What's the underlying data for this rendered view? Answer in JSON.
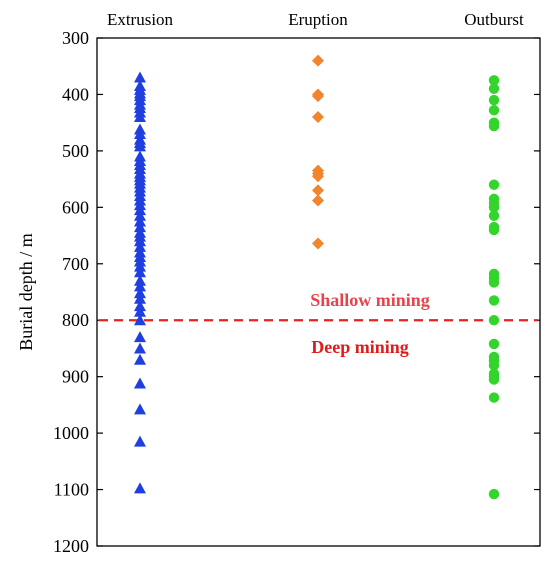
{
  "chart_data": {
    "type": "scatter",
    "categories": [
      "Extrusion",
      "Eruption",
      "Outburst"
    ],
    "ylabel": "Burial depth / m",
    "ylim": [
      300,
      1200
    ],
    "y_inverted": true,
    "yticks": [
      300,
      400,
      500,
      600,
      700,
      800,
      900,
      1000,
      1100,
      1200
    ],
    "series": [
      {
        "category": "Extrusion",
        "marker": "triangle",
        "color": "#1f3fe0",
        "values": [
          370,
          385,
          392,
          398,
          403,
          410,
          418,
          424,
          432,
          440,
          462,
          470,
          480,
          486,
          492,
          510,
          518,
          525,
          532,
          540,
          546,
          552,
          558,
          565,
          572,
          580,
          588,
          596,
          605,
          615,
          625,
          635,
          645,
          652,
          660,
          670,
          680,
          688,
          696,
          705,
          715,
          730,
          740,
          752,
          762,
          775,
          785,
          800,
          830,
          850,
          870,
          912,
          958,
          1015,
          1098
        ]
      },
      {
        "category": "Eruption",
        "marker": "diamond",
        "color": "#f0852d",
        "values": [
          340,
          400,
          403,
          440,
          535,
          540,
          545,
          570,
          588,
          664
        ]
      },
      {
        "category": "Outburst",
        "marker": "circle",
        "color": "#33d42c",
        "values": [
          375,
          390,
          410,
          428,
          450,
          456,
          560,
          585,
          593,
          600,
          615,
          635,
          640,
          718,
          725,
          733,
          765,
          800,
          842,
          865,
          872,
          880,
          895,
          900,
          905,
          937,
          1108
        ]
      }
    ],
    "threshold": {
      "value": 800,
      "color": "#e8221c",
      "label_above": "Shallow mining",
      "label_below": "Deep mining",
      "label_above_color": "#e8434c",
      "label_below_color": "#e11a1a"
    }
  }
}
